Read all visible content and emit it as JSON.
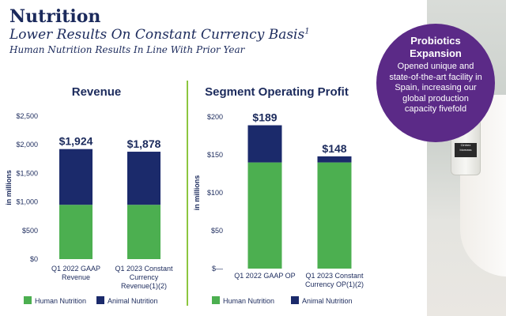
{
  "header": {
    "title": "Nutrition",
    "subtitle_main": "Lower Results On Constant Currency Basis",
    "subtitle_sup": "1",
    "subtitle_secondary": "Human Nutrition Results In Line With Prior Year"
  },
  "callout": {
    "title_line1": "Probiotics",
    "title_line2": "Expansion",
    "text": "Opened unique and state-of-the-art facility in Spain, increasing our global production capacity fivefold",
    "vial_text": "Cintrex biomass"
  },
  "colors": {
    "human": "#4caf50",
    "animal": "#1b2a6b",
    "accent_purple": "#5b2a87",
    "divider": "#8cc63f"
  },
  "chart_data": [
    {
      "type": "bar",
      "stacked": true,
      "title": "Revenue",
      "ylabel": "in millions",
      "ylim": [
        0,
        2500
      ],
      "yticks": [
        0,
        500,
        1000,
        1500,
        2000,
        2500
      ],
      "ytick_labels": [
        "$0",
        "$500",
        "$1,000",
        "$1,500",
        "$2,000",
        "$2,500"
      ],
      "categories": [
        [
          "Q1 2022 GAAP",
          "Revenue"
        ],
        [
          "Q1 2023 Constant",
          "Currency",
          "Revenue(1)(2)"
        ]
      ],
      "series": [
        {
          "name": "Human Nutrition",
          "values": [
            950,
            950
          ]
        },
        {
          "name": "Animal Nutrition",
          "values": [
            974,
            928
          ]
        }
      ],
      "totals": [
        1924,
        1878
      ],
      "total_labels": [
        "$1,924",
        "$1,878"
      ]
    },
    {
      "type": "bar",
      "stacked": true,
      "title": "Segment Operating Profit",
      "ylabel": "in millions",
      "ylim": [
        0,
        200
      ],
      "yticks": [
        0,
        50,
        100,
        150,
        200
      ],
      "ytick_labels": [
        "$—",
        "$50",
        "$100",
        "$150",
        "$200"
      ],
      "categories": [
        [
          "Q1 2022 GAAP OP"
        ],
        [
          "Q1 2023 Constant",
          "Currency OP(1)(2)"
        ]
      ],
      "series": [
        {
          "name": "Human Nutrition",
          "values": [
            140,
            140
          ]
        },
        {
          "name": "Animal Nutrition",
          "values": [
            49,
            8
          ]
        }
      ],
      "totals": [
        189,
        148
      ],
      "total_labels": [
        "$189",
        "$148"
      ]
    }
  ]
}
